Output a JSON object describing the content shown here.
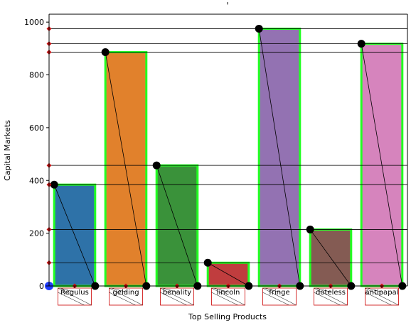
{
  "chart_data": {
    "type": "bar",
    "title": "'",
    "xlabel": "Top Selling Products",
    "ylabel": "Capital Markets",
    "categories": [
      "Regulus",
      "gelding",
      "benality",
      "lincoln",
      "fringe",
      "doteless",
      "antipapal"
    ],
    "values": [
      384,
      886,
      457,
      88,
      975,
      214,
      918
    ],
    "ylim": [
      0,
      1030
    ],
    "yticks": [
      0,
      200,
      400,
      600,
      800,
      1000
    ],
    "grid": false,
    "legend": "none",
    "colors": {
      "bars": [
        "#2e72a8",
        "#e1812c",
        "#3a923a",
        "#c03d3e",
        "#9372b2",
        "#845b53",
        "#d684bd"
      ],
      "bar_edge": "#22ff22",
      "marker_points": "#000000",
      "marker_diamonds": "#cc1111",
      "marker_origin": "#1f3cff",
      "label_box": "#cc0000"
    }
  }
}
